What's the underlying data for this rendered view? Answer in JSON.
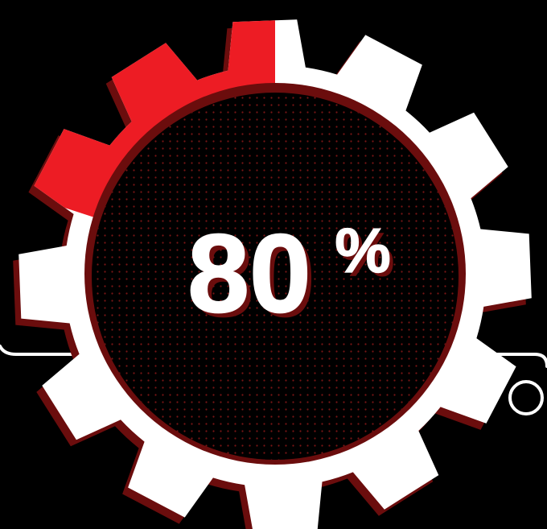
{
  "gauge": {
    "value": 80,
    "value_text": "80",
    "percent_sign": "%",
    "highlight_fraction": 0.2
  },
  "colors": {
    "background": "#000000",
    "gear_fill": "#ffffff",
    "gear_shadow": "#6b0d0d",
    "highlight": "#ed1c24",
    "dot_pattern": "#7a1414",
    "text": "#ffffff",
    "text_shadow": "#6b0d0d",
    "circuit_line": "#ffffff"
  },
  "icons": {
    "gear": "gear-icon",
    "circuit_node": "circle-node-icon"
  }
}
